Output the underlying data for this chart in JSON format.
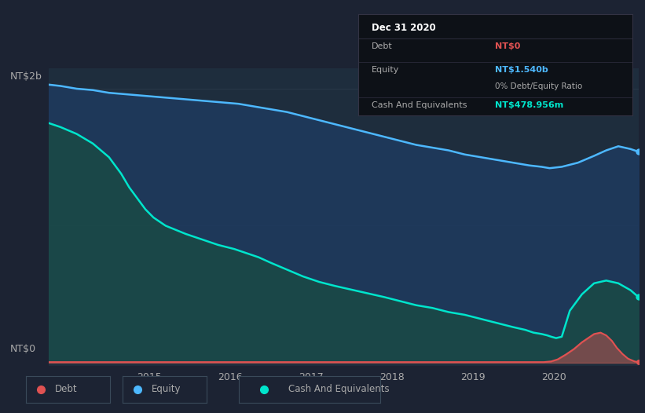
{
  "bg_color": "#1c2333",
  "plot_bg_color": "#1e2d3d",
  "ylabel_top": "NT$2b",
  "ylabel_bottom": "NT$0",
  "annotation_title": "Dec 31 2020",
  "annotation_debt_label": "Debt",
  "annotation_debt_value": "NT$0",
  "annotation_equity_label": "Equity",
  "annotation_equity_value": "NT$1.540b",
  "annotation_ratio": "0% Debt/Equity Ratio",
  "annotation_cash_label": "Cash And Equivalents",
  "annotation_cash_value": "NT$478.956m",
  "debt_color": "#e05252",
  "equity_color": "#4db8ff",
  "cash_color": "#00e5cc",
  "equity_fill_color": "#1e3a5f",
  "cash_fill_color": "#1a4a4a",
  "legend_labels": [
    "Debt",
    "Equity",
    "Cash And Equivalents"
  ],
  "equity_x": [
    2013.75,
    2013.9,
    2014.1,
    2014.3,
    2014.5,
    2014.7,
    2014.9,
    2015.1,
    2015.3,
    2015.5,
    2015.7,
    2015.9,
    2016.1,
    2016.3,
    2016.5,
    2016.7,
    2016.9,
    2017.1,
    2017.3,
    2017.5,
    2017.7,
    2017.9,
    2018.1,
    2018.3,
    2018.5,
    2018.7,
    2018.9,
    2019.1,
    2019.3,
    2019.5,
    2019.7,
    2019.85,
    2019.95,
    2020.1,
    2020.3,
    2020.5,
    2020.65,
    2020.8,
    2020.95,
    2021.05
  ],
  "equity_y": [
    2.03,
    2.02,
    2.0,
    1.99,
    1.97,
    1.96,
    1.95,
    1.94,
    1.93,
    1.92,
    1.91,
    1.9,
    1.89,
    1.87,
    1.85,
    1.83,
    1.8,
    1.77,
    1.74,
    1.71,
    1.68,
    1.65,
    1.62,
    1.59,
    1.57,
    1.55,
    1.52,
    1.5,
    1.48,
    1.46,
    1.44,
    1.43,
    1.42,
    1.43,
    1.46,
    1.51,
    1.55,
    1.58,
    1.56,
    1.54
  ],
  "cash_x": [
    2013.75,
    2013.9,
    2014.1,
    2014.3,
    2014.5,
    2014.65,
    2014.75,
    2014.85,
    2014.95,
    2015.05,
    2015.2,
    2015.45,
    2015.65,
    2015.85,
    2016.05,
    2016.2,
    2016.35,
    2016.5,
    2016.7,
    2016.9,
    2017.1,
    2017.3,
    2017.45,
    2017.6,
    2017.75,
    2017.9,
    2018.1,
    2018.3,
    2018.5,
    2018.7,
    2018.9,
    2019.1,
    2019.3,
    2019.5,
    2019.65,
    2019.75,
    2019.85,
    2019.92,
    2019.97,
    2020.03,
    2020.1,
    2020.2,
    2020.35,
    2020.5,
    2020.65,
    2020.8,
    2020.95,
    2021.05
  ],
  "cash_y": [
    1.75,
    1.72,
    1.67,
    1.6,
    1.5,
    1.38,
    1.28,
    1.2,
    1.12,
    1.06,
    1.0,
    0.94,
    0.9,
    0.86,
    0.83,
    0.8,
    0.77,
    0.73,
    0.68,
    0.63,
    0.59,
    0.56,
    0.54,
    0.52,
    0.5,
    0.48,
    0.45,
    0.42,
    0.4,
    0.37,
    0.35,
    0.32,
    0.29,
    0.26,
    0.24,
    0.22,
    0.21,
    0.2,
    0.19,
    0.18,
    0.19,
    0.38,
    0.5,
    0.58,
    0.6,
    0.58,
    0.53,
    0.479
  ],
  "debt_x": [
    2013.75,
    2014.0,
    2015.0,
    2016.0,
    2017.0,
    2018.0,
    2019.0,
    2019.5,
    2019.75,
    2019.88,
    2019.97,
    2020.05,
    2020.15,
    2020.25,
    2020.35,
    2020.45,
    2020.5,
    2020.58,
    2020.65,
    2020.72,
    2020.78,
    2020.85,
    2020.92,
    2021.0,
    2021.05
  ],
  "debt_y": [
    0.005,
    0.005,
    0.005,
    0.005,
    0.005,
    0.005,
    0.005,
    0.005,
    0.005,
    0.005,
    0.01,
    0.025,
    0.06,
    0.1,
    0.15,
    0.19,
    0.21,
    0.22,
    0.2,
    0.16,
    0.11,
    0.065,
    0.03,
    0.01,
    0.005
  ],
  "xlim": [
    2013.75,
    2021.05
  ],
  "ylim": [
    -0.02,
    2.15
  ],
  "grid_color": "#2a3a4a",
  "text_color": "#aaaaaa",
  "white_color": "#ffffff",
  "tooltip_bg": "#0d1117",
  "tooltip_border": "#333344"
}
